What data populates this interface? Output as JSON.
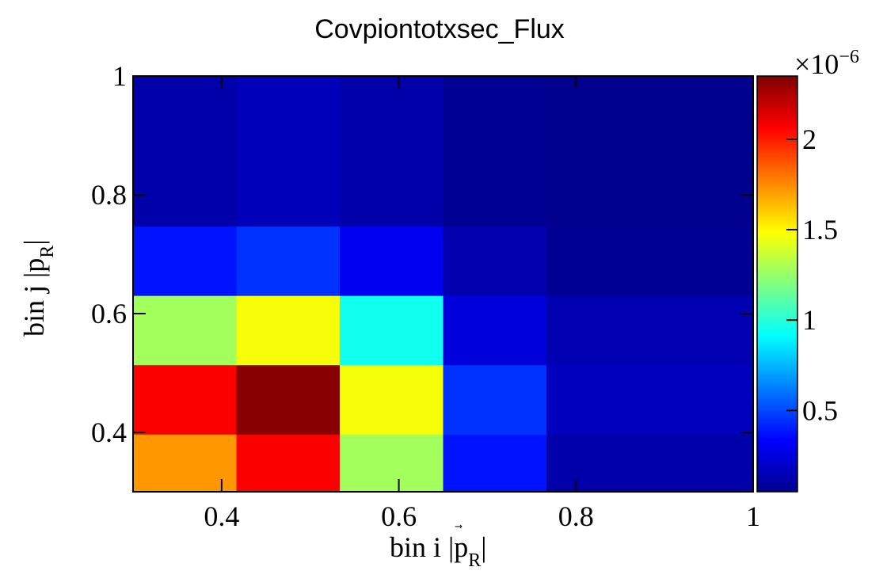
{
  "chart_data": {
    "type": "heatmap",
    "title": "Covpiontotxsec_Flux",
    "xlabel": {
      "main": "bin i |",
      "vec": "p",
      "sub": "R",
      "end": "|"
    },
    "ylabel": {
      "main": "bin j |",
      "vec": "p",
      "sub": "R",
      "end": "|"
    },
    "x_edges": [
      0.3,
      0.4167,
      0.5333,
      0.65,
      0.7667,
      0.8833,
      1.0
    ],
    "y_edges": [
      0.3,
      0.3972,
      0.5139,
      0.6306,
      0.7472,
      1.0
    ],
    "xlim": [
      0.3,
      1.0
    ],
    "ylim": [
      0.3,
      1.0
    ],
    "x_ticks": [
      {
        "value": 0.4,
        "label": "0.4"
      },
      {
        "value": 0.6,
        "label": "0.6"
      },
      {
        "value": 0.8,
        "label": "0.8"
      },
      {
        "value": 1.0,
        "label": "1"
      }
    ],
    "y_ticks": [
      {
        "value": 0.4,
        "label": "0.4"
      },
      {
        "value": 0.6,
        "label": "0.6"
      },
      {
        "value": 0.8,
        "label": "0.8"
      },
      {
        "value": 1.0,
        "label": "1"
      }
    ],
    "z_values": [
      [
        1.72e-06,
        2.07e-06,
        1.28e-06,
        3.8e-07,
        1.2e-07,
        1.2e-07
      ],
      [
        2.07e-06,
        2.33e-06,
        1.47e-06,
        4.5e-07,
        1.7e-07,
        1.7e-07
      ],
      [
        1.28e-06,
        1.47e-06,
        9.5e-07,
        2.5e-07,
        1.4e-07,
        1.4e-07
      ],
      [
        3.8e-07,
        4.5e-07,
        3e-07,
        1.3e-07,
        6e-08,
        6e-08
      ],
      [
        1.2e-07,
        1.6e-07,
        1.2e-07,
        6e-08,
        5e-08,
        5e-08
      ]
    ],
    "zlim": [
      5e-08,
      2.35e-06
    ],
    "colorbar": {
      "multiplier": "×10",
      "exponent": "−6",
      "ticks": [
        {
          "value": 5e-07,
          "label": "0.5"
        },
        {
          "value": 1e-06,
          "label": "1"
        },
        {
          "value": 1.5e-06,
          "label": "1.5"
        },
        {
          "value": 2e-06,
          "label": "2"
        }
      ]
    },
    "colormap": "jet",
    "grid": false
  }
}
